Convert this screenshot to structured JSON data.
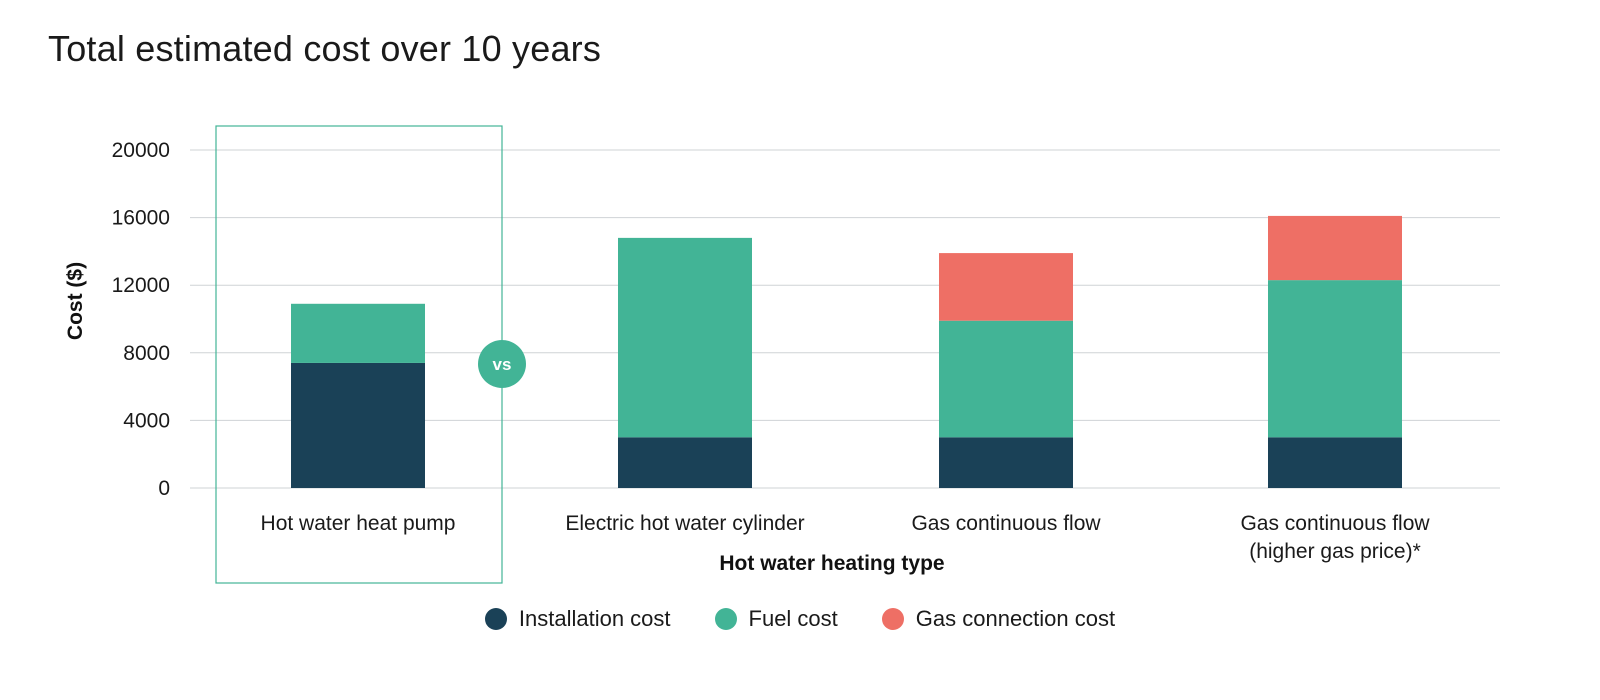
{
  "chart_data": {
    "type": "bar",
    "stacked": true,
    "title": "Total estimated cost over 10 years",
    "xlabel": "Hot water heating type",
    "ylabel": "Cost ($)",
    "ylim": [
      0,
      20000
    ],
    "yticks": [
      0,
      4000,
      8000,
      12000,
      16000,
      20000
    ],
    "grid": true,
    "legend_position": "bottom",
    "categories": [
      [
        "Hot water heat pump"
      ],
      [
        "Electric hot water cylinder"
      ],
      [
        "Gas continuous flow"
      ],
      [
        "Gas continuous flow",
        "(higher gas price)*"
      ]
    ],
    "series": [
      {
        "name": "Installation cost",
        "color": "#1a4157",
        "values": [
          7400,
          3000,
          3000,
          3000
        ]
      },
      {
        "name": "Fuel cost",
        "color": "#42b496",
        "values": [
          3500,
          11800,
          6900,
          9300
        ]
      },
      {
        "name": "Gas connection cost",
        "color": "#ee6f65",
        "values": [
          0,
          0,
          4000,
          3800
        ]
      }
    ],
    "highlight": {
      "category_index": 0,
      "badge": "vs",
      "color": "#42b496"
    }
  }
}
